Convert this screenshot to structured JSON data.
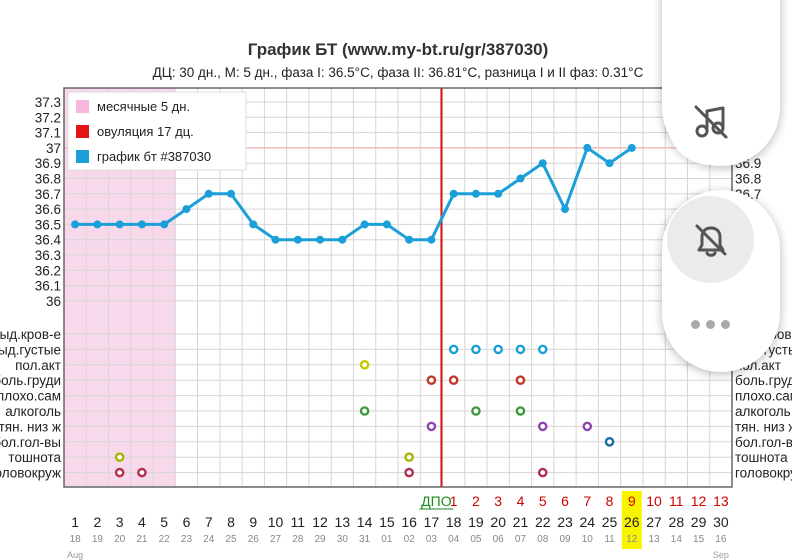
{
  "chart_data": {
    "type": "line",
    "title": "График БТ (www.my-bt.ru/gr/387030)",
    "subtitle": "ДЦ: 30 дн., М: 5 дн., фаза I: 36.5°C, фаза II: 36.81°C, разница I и II фаз: 0.31°C",
    "y_ticks": [
      "37.3",
      "37.2",
      "37.1",
      "37",
      "36.9",
      "36.8",
      "36.7",
      "36.6",
      "36.5",
      "36.4",
      "36.3",
      "36.2",
      "36.1",
      "36"
    ],
    "ylim": [
      36.0,
      37.3
    ],
    "coverline": 37.0,
    "legend": [
      {
        "label": "месячные 5 дн.",
        "color": "#f7b7dd"
      },
      {
        "label": "овуляция 17 дц.",
        "color": "#e01515"
      },
      {
        "label": "график бт #387030",
        "color": "#1a9fd8"
      }
    ],
    "cycle_days": [
      1,
      2,
      3,
      4,
      5,
      6,
      7,
      8,
      9,
      10,
      11,
      12,
      13,
      14,
      15,
      16,
      17,
      18,
      19,
      20,
      21,
      22,
      23,
      24,
      25,
      26,
      27,
      28,
      29,
      30
    ],
    "dates": [
      "18",
      "19",
      "20",
      "21",
      "22",
      "23",
      "24",
      "25",
      "26",
      "27",
      "28",
      "29",
      "30",
      "31",
      "01",
      "02",
      "03",
      "04",
      "05",
      "06",
      "07",
      "08",
      "09",
      "10",
      "11",
      "12",
      "13",
      "14",
      "15",
      "16"
    ],
    "months": [
      "Aug",
      "Sep"
    ],
    "dpo_label": "ДПО",
    "dpo": [
      "1",
      "2",
      "3",
      "4",
      "5",
      "6",
      "7",
      "8",
      "9",
      "10",
      "11",
      "12",
      "13"
    ],
    "highlight_day": 26,
    "temperatures": [
      36.5,
      36.5,
      36.5,
      36.5,
      36.5,
      36.6,
      36.7,
      36.7,
      36.5,
      36.4,
      36.4,
      36.4,
      36.4,
      36.5,
      36.5,
      36.4,
      36.4,
      36.7,
      36.7,
      36.7,
      36.8,
      36.9,
      36.6,
      37.0,
      36.9,
      37.0
    ],
    "menses_days": [
      1,
      2,
      3,
      4,
      5
    ],
    "ovulation_day": 17,
    "symptom_rows": [
      "выд.кров-е",
      "выд.густые",
      "пол.акт",
      "боль.груди",
      "плохо.сам",
      "алкоголь",
      "тян. низ ж",
      "бол.гол-вы",
      "тошнота",
      "головокруж"
    ],
    "symptom_rows_right": [
      "выд.кров-е",
      "выд.густые",
      "пол.акт",
      "боль.груди",
      "плохо.сам",
      "алкоголь",
      "тян. низ ж",
      "бол.гол-вы",
      "тошнота",
      "головокруж"
    ],
    "symptom_points": [
      {
        "row": 1,
        "day": 18,
        "color": "#1a9fd8"
      },
      {
        "row": 1,
        "day": 19,
        "color": "#1a9fd8"
      },
      {
        "row": 1,
        "day": 20,
        "color": "#1a9fd8"
      },
      {
        "row": 1,
        "day": 21,
        "color": "#1a9fd8"
      },
      {
        "row": 1,
        "day": 22,
        "color": "#1a9fd8"
      },
      {
        "row": 2,
        "day": 14,
        "color": "#c8c800"
      },
      {
        "row": 3,
        "day": 17,
        "color": "#c0392b"
      },
      {
        "row": 3,
        "day": 18,
        "color": "#c0392b"
      },
      {
        "row": 3,
        "day": 21,
        "color": "#c0392b"
      },
      {
        "row": 5,
        "day": 14,
        "color": "#3a9a3a"
      },
      {
        "row": 5,
        "day": 19,
        "color": "#3a9a3a"
      },
      {
        "row": 5,
        "day": 21,
        "color": "#3a9a3a"
      },
      {
        "row": 6,
        "day": 17,
        "color": "#8e44ad"
      },
      {
        "row": 6,
        "day": 22,
        "color": "#8e44ad"
      },
      {
        "row": 6,
        "day": 24,
        "color": "#8e44ad"
      },
      {
        "row": 7,
        "day": 25,
        "color": "#1a6fa0"
      },
      {
        "row": 8,
        "day": 3,
        "color": "#a8b400"
      },
      {
        "row": 8,
        "day": 16,
        "color": "#a8b400"
      },
      {
        "row": 9,
        "day": 3,
        "color": "#b03050"
      },
      {
        "row": 9,
        "day": 4,
        "color": "#b03050"
      },
      {
        "row": 9,
        "day": 16,
        "color": "#b03050"
      },
      {
        "row": 9,
        "day": 22,
        "color": "#b03050"
      }
    ]
  },
  "ui": {
    "panel_top_icon": "music-note-off-icon",
    "panel_mid_icon": "bell-off-icon",
    "panel_more_icon": "more-horizontal-icon"
  }
}
